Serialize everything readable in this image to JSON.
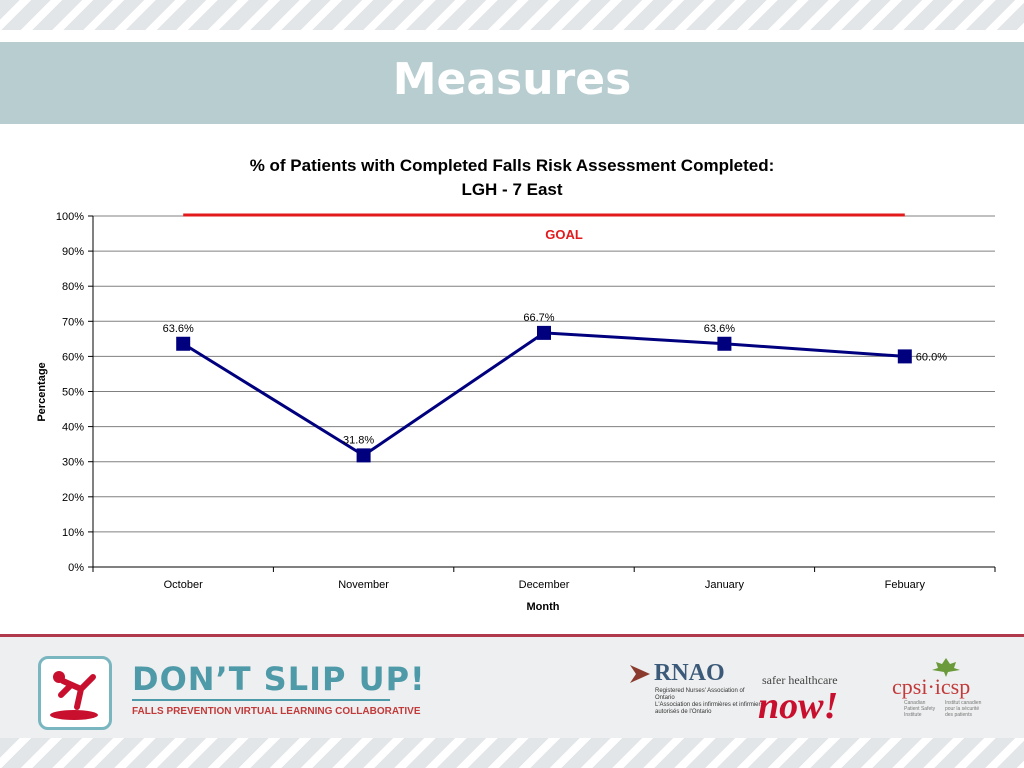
{
  "slide": {
    "title": "Measures"
  },
  "chart_data": {
    "type": "line",
    "title": "% of Patients with Completed Falls Risk Assessment Completed:",
    "subtitle": "LGH - 7 East",
    "xlabel": "Month",
    "ylabel": "Percentage",
    "categories": [
      "October",
      "November",
      "December",
      "January",
      "Febuary"
    ],
    "series": [
      {
        "values": [
          63.6,
          31.8,
          66.7,
          63.6,
          60.0
        ],
        "data_labels": [
          "63.6%",
          "31.8%",
          "66.7%",
          "63.6%",
          "60.0%"
        ]
      }
    ],
    "goal": {
      "value": 100,
      "label": "GOAL"
    },
    "ylim": [
      0,
      100
    ],
    "yticks": [
      0,
      10,
      20,
      30,
      40,
      50,
      60,
      70,
      80,
      90,
      100
    ],
    "ytick_labels": [
      "0%",
      "10%",
      "20%",
      "30%",
      "40%",
      "50%",
      "60%",
      "70%",
      "80%",
      "90%",
      "100%"
    ],
    "grid": true,
    "legend": "none",
    "colors": {
      "series": "#00007f",
      "goal": "#e31a1c"
    }
  },
  "footer": {
    "campaign_title": "DON’T SLIP UP!",
    "campaign_subtitle": "FALLS PREVENTION VIRTUAL LEARNING COLLABORATIVE",
    "rnao_name": "RNAO",
    "rnao_line_1": "Registered Nurses' Association of Ontario",
    "rnao_line_2": "L'Association des infirmières et infirmiers autorisés de l'Ontario",
    "shn_top": "safer healthcare",
    "shn_now": "now!",
    "cpsi_name": "cpsi·icsp",
    "cpsi_en": "Canadian Patient Safety Institute",
    "cpsi_fr": "Institut canadien pour la sécurité des patients"
  }
}
